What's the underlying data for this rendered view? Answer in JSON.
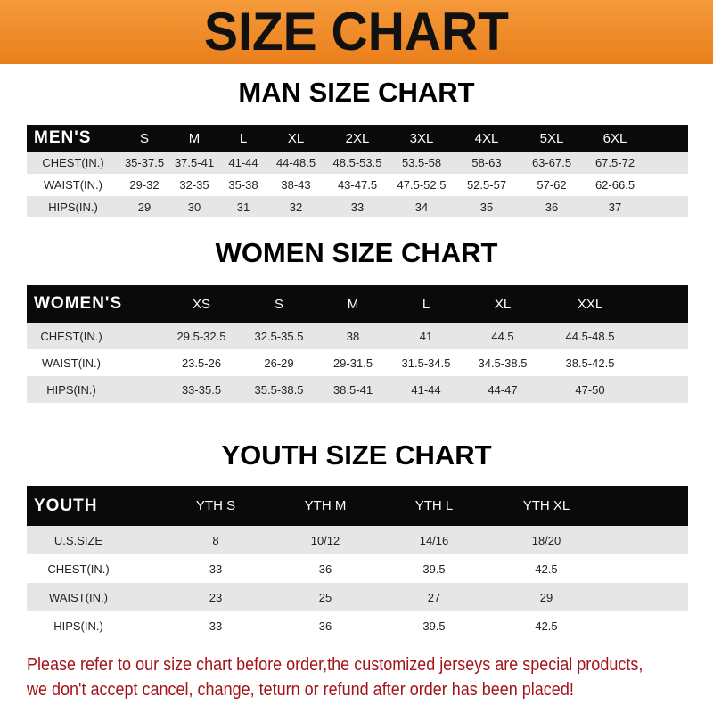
{
  "banner_title": "SIZE CHART",
  "men": {
    "title": "MAN SIZE CHART",
    "header": [
      "MEN'S",
      "S",
      "M",
      "L",
      "XL",
      "2XL",
      "3XL",
      "4XL",
      "5XL",
      "6XL"
    ],
    "rows": [
      [
        "CHEST(IN.)",
        "35-37.5",
        "37.5-41",
        "41-44",
        "44-48.5",
        "48.5-53.5",
        "53.5-58",
        "58-63",
        "63-67.5",
        "67.5-72"
      ],
      [
        "WAIST(IN.)",
        "29-32",
        "32-35",
        "35-38",
        "38-43",
        "43-47.5",
        "47.5-52.5",
        "52.5-57",
        "57-62",
        "62-66.5"
      ],
      [
        "HIPS(IN.)",
        "29",
        "30",
        "31",
        "32",
        "33",
        "34",
        "35",
        "36",
        "37"
      ]
    ]
  },
  "women": {
    "title": "WOMEN SIZE CHART",
    "header": [
      "WOMEN'S",
      "XS",
      "S",
      "M",
      "L",
      "XL",
      "XXL"
    ],
    "rows": [
      [
        "CHEST(IN.)",
        "29.5-32.5",
        "32.5-35.5",
        "38",
        "41",
        "44.5",
        "44.5-48.5"
      ],
      [
        "WAIST(IN.)",
        "23.5-26",
        "26-29",
        "29-31.5",
        "31.5-34.5",
        "34.5-38.5",
        "38.5-42.5"
      ],
      [
        "HIPS(IN.)",
        "33-35.5",
        "35.5-38.5",
        "38.5-41",
        "41-44",
        "44-47",
        "47-50"
      ]
    ]
  },
  "youth": {
    "title": "YOUTH SIZE CHART",
    "header": [
      "YOUTH",
      "YTH S",
      "YTH M",
      "YTH L",
      "YTH XL"
    ],
    "rows": [
      [
        "U.S.SIZE",
        "8",
        "10/12",
        "14/16",
        "18/20"
      ],
      [
        "CHEST(IN.)",
        "33",
        "36",
        "39.5",
        "42.5"
      ],
      [
        "WAIST(IN.)",
        "23",
        "25",
        "27",
        "29"
      ],
      [
        "HIPS(IN.)",
        "33",
        "36",
        "39.5",
        "42.5"
      ]
    ]
  },
  "footer": [
    "Please refer to our size chart before order,the customized jerseys are special products,",
    "we don't accept cancel, change, teturn or refund after order has been placed!"
  ]
}
